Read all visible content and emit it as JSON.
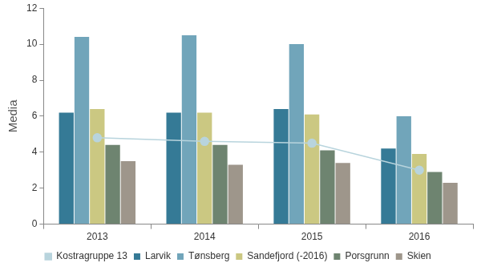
{
  "chart_data": {
    "type": "bar",
    "y_label": "Media",
    "categories": [
      "2013",
      "2014",
      "2015",
      "2016"
    ],
    "series": [
      {
        "name": "Larvik",
        "color": "#357a96",
        "values": [
          6.2,
          6.2,
          6.4,
          4.2
        ]
      },
      {
        "name": "Tønsberg",
        "color": "#71a5ba",
        "values": [
          10.4,
          10.5,
          10.0,
          6.0
        ]
      },
      {
        "name": "Sandefjord (-2016)",
        "color": "#cbc882",
        "values": [
          6.4,
          6.2,
          6.1,
          3.9
        ]
      },
      {
        "name": "Porsgrunn",
        "color": "#6e8470",
        "values": [
          4.4,
          4.4,
          4.1,
          2.9
        ]
      },
      {
        "name": "Skien",
        "color": "#9e968b",
        "values": [
          3.5,
          3.3,
          3.4,
          2.3
        ]
      },
      {
        "name": "Kostragruppe 13",
        "color": "#b8d4dd",
        "type": "line",
        "marker": "circle",
        "values": [
          4.8,
          4.6,
          4.5,
          3.0
        ]
      }
    ],
    "ylim": [
      0,
      12
    ],
    "yticks": [
      0,
      2,
      4,
      6,
      8,
      10,
      12
    ],
    "grid": false,
    "legend": "bottom"
  }
}
